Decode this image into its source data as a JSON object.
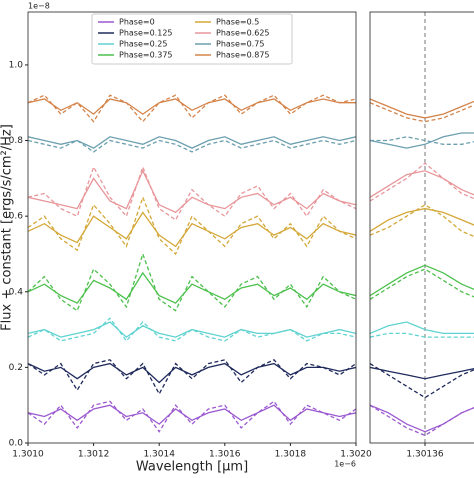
{
  "chart_data": [
    {
      "type": "line",
      "xlabel": "Wavelength [μm]",
      "ylabel": "Flux + constant [ergs/s/cm²/Hz]",
      "y_offset_text": "1e−8",
      "x_offset_text": "1e−6",
      "legend": "upper center",
      "x": [
        1.301,
        1.30105,
        1.3011,
        1.30115,
        1.3012,
        1.30125,
        1.3013,
        1.30135,
        1.3014,
        1.30145,
        1.3015,
        1.30155,
        1.3016,
        1.30165,
        1.3017,
        1.30175,
        1.3018,
        1.30185,
        1.3019,
        1.30195,
        1.302
      ],
      "xlim": [
        1.301,
        1.302
      ],
      "xticks": [
        {
          "value": 1.301,
          "label": "1.3010"
        },
        {
          "value": 1.3012,
          "label": "1.3012"
        },
        {
          "value": 1.3014,
          "label": "1.3014"
        },
        {
          "value": 1.3016,
          "label": "1.3016"
        },
        {
          "value": 1.3018,
          "label": "1.3018"
        },
        {
          "value": 1.302,
          "label": "1.3020"
        }
      ],
      "ylim": [
        0,
        1.14
      ],
      "yticks": [
        {
          "value": 0,
          "label": "0.0"
        },
        {
          "value": 0.2,
          "label": "0.2"
        },
        {
          "value": 0.4,
          "label": "0.4"
        },
        {
          "value": 0.6,
          "label": "0.6"
        },
        {
          "value": 0.8,
          "label": "0.8"
        },
        {
          "value": 1,
          "label": "1.0"
        }
      ],
      "series": [
        {
          "name": "Phase=0",
          "color": "#9b59d0",
          "values": [
            0.08,
            0.07,
            0.09,
            0.06,
            0.09,
            0.1,
            0.07,
            0.08,
            0.05,
            0.09,
            0.06,
            0.08,
            0.09,
            0.06,
            0.08,
            0.1,
            0.06,
            0.09,
            0.08,
            0.07,
            0.08
          ],
          "dashed_values": [
            0.08,
            0.05,
            0.1,
            0.04,
            0.1,
            0.11,
            0.06,
            0.09,
            0.03,
            0.1,
            0.05,
            0.09,
            0.1,
            0.04,
            0.08,
            0.11,
            0.05,
            0.1,
            0.08,
            0.06,
            0.09
          ]
        },
        {
          "name": "Phase=0.125",
          "color": "#1f2a5c",
          "values": [
            0.21,
            0.19,
            0.2,
            0.17,
            0.2,
            0.21,
            0.18,
            0.2,
            0.16,
            0.2,
            0.18,
            0.2,
            0.21,
            0.18,
            0.2,
            0.21,
            0.18,
            0.2,
            0.2,
            0.19,
            0.2
          ],
          "dashed_values": [
            0.21,
            0.18,
            0.21,
            0.14,
            0.21,
            0.22,
            0.17,
            0.21,
            0.13,
            0.21,
            0.17,
            0.21,
            0.22,
            0.16,
            0.2,
            0.22,
            0.17,
            0.21,
            0.2,
            0.18,
            0.21
          ]
        },
        {
          "name": "Phase=0.25",
          "color": "#5fd3d0",
          "values": [
            0.29,
            0.3,
            0.28,
            0.29,
            0.3,
            0.32,
            0.28,
            0.31,
            0.29,
            0.28,
            0.3,
            0.29,
            0.28,
            0.3,
            0.29,
            0.29,
            0.3,
            0.28,
            0.29,
            0.3,
            0.29
          ],
          "dashed_values": [
            0.28,
            0.3,
            0.27,
            0.28,
            0.29,
            0.33,
            0.27,
            0.32,
            0.28,
            0.27,
            0.3,
            0.28,
            0.27,
            0.3,
            0.28,
            0.29,
            0.3,
            0.27,
            0.29,
            0.29,
            0.28
          ]
        },
        {
          "name": "Phase=0.375",
          "color": "#4cc04c",
          "values": [
            0.4,
            0.42,
            0.39,
            0.37,
            0.43,
            0.41,
            0.38,
            0.45,
            0.39,
            0.37,
            0.42,
            0.4,
            0.38,
            0.41,
            0.42,
            0.39,
            0.41,
            0.38,
            0.42,
            0.4,
            0.39
          ],
          "dashed_values": [
            0.4,
            0.44,
            0.38,
            0.35,
            0.46,
            0.42,
            0.36,
            0.5,
            0.38,
            0.35,
            0.44,
            0.4,
            0.36,
            0.42,
            0.44,
            0.38,
            0.42,
            0.36,
            0.44,
            0.4,
            0.38
          ]
        },
        {
          "name": "Phase=0.5",
          "color": "#d4a838",
          "values": [
            0.56,
            0.58,
            0.55,
            0.53,
            0.6,
            0.57,
            0.54,
            0.61,
            0.55,
            0.52,
            0.58,
            0.56,
            0.54,
            0.57,
            0.58,
            0.55,
            0.57,
            0.54,
            0.58,
            0.56,
            0.55
          ],
          "dashed_values": [
            0.57,
            0.6,
            0.54,
            0.51,
            0.63,
            0.58,
            0.52,
            0.65,
            0.54,
            0.5,
            0.6,
            0.56,
            0.52,
            0.58,
            0.6,
            0.54,
            0.58,
            0.52,
            0.6,
            0.56,
            0.54
          ]
        },
        {
          "name": "Phase=0.625",
          "color": "#e8969a",
          "values": [
            0.65,
            0.64,
            0.63,
            0.62,
            0.7,
            0.64,
            0.62,
            0.72,
            0.63,
            0.61,
            0.65,
            0.63,
            0.62,
            0.65,
            0.66,
            0.63,
            0.65,
            0.62,
            0.66,
            0.64,
            0.63
          ],
          "dashed_values": [
            0.65,
            0.66,
            0.62,
            0.6,
            0.73,
            0.65,
            0.6,
            0.73,
            0.62,
            0.59,
            0.67,
            0.63,
            0.6,
            0.66,
            0.68,
            0.62,
            0.66,
            0.6,
            0.67,
            0.64,
            0.62
          ]
        },
        {
          "name": "Phase=0.75",
          "color": "#6b9fae",
          "values": [
            0.81,
            0.8,
            0.79,
            0.8,
            0.78,
            0.81,
            0.8,
            0.79,
            0.81,
            0.8,
            0.78,
            0.8,
            0.81,
            0.79,
            0.8,
            0.81,
            0.79,
            0.8,
            0.81,
            0.8,
            0.81
          ],
          "dashed_values": [
            0.8,
            0.79,
            0.78,
            0.8,
            0.77,
            0.8,
            0.79,
            0.78,
            0.8,
            0.79,
            0.77,
            0.79,
            0.8,
            0.78,
            0.79,
            0.8,
            0.78,
            0.79,
            0.8,
            0.79,
            0.8
          ]
        },
        {
          "name": "Phase=0.875",
          "color": "#d4844a",
          "values": [
            0.9,
            0.91,
            0.88,
            0.9,
            0.87,
            0.91,
            0.9,
            0.87,
            0.9,
            0.91,
            0.88,
            0.9,
            0.91,
            0.88,
            0.9,
            0.91,
            0.88,
            0.9,
            0.91,
            0.9,
            0.9
          ],
          "dashed_values": [
            0.9,
            0.92,
            0.87,
            0.9,
            0.85,
            0.92,
            0.9,
            0.85,
            0.9,
            0.92,
            0.86,
            0.9,
            0.92,
            0.87,
            0.9,
            0.92,
            0.87,
            0.9,
            0.92,
            0.9,
            0.91
          ]
        }
      ]
    },
    {
      "type": "line",
      "vline": 1.30136,
      "x": [
        1.30133,
        1.30134,
        1.30135,
        1.30136,
        1.30137,
        1.30138,
        1.30139
      ],
      "xlim": [
        1.30133,
        1.30139
      ],
      "xticks": [
        1.30136
      ],
      "ylim": [
        0,
        1.14
      ],
      "series": [
        {
          "color": "#9b59d0",
          "values": [
            0.1,
            0.08,
            0.05,
            0.03,
            0.05,
            0.08,
            0.1
          ],
          "dashed_values": [
            0.1,
            0.07,
            0.04,
            0.02,
            0.05,
            0.08,
            0.1
          ]
        },
        {
          "color": "#1f2a5c",
          "values": [
            0.2,
            0.19,
            0.18,
            0.17,
            0.18,
            0.19,
            0.2
          ],
          "dashed_values": [
            0.21,
            0.18,
            0.15,
            0.12,
            0.15,
            0.18,
            0.2
          ]
        },
        {
          "color": "#5fd3d0",
          "values": [
            0.29,
            0.31,
            0.32,
            0.3,
            0.29,
            0.29,
            0.29
          ],
          "dashed_values": [
            0.28,
            0.29,
            0.29,
            0.28,
            0.28,
            0.28,
            0.28
          ]
        },
        {
          "color": "#4cc04c",
          "values": [
            0.39,
            0.42,
            0.45,
            0.47,
            0.45,
            0.42,
            0.4
          ],
          "dashed_values": [
            0.38,
            0.41,
            0.44,
            0.46,
            0.43,
            0.4,
            0.38
          ]
        },
        {
          "color": "#d4a838",
          "values": [
            0.56,
            0.59,
            0.61,
            0.62,
            0.61,
            0.59,
            0.57
          ],
          "dashed_values": [
            0.55,
            0.57,
            0.6,
            0.63,
            0.6,
            0.56,
            0.54
          ]
        },
        {
          "color": "#e8969a",
          "values": [
            0.65,
            0.68,
            0.71,
            0.72,
            0.7,
            0.67,
            0.65
          ],
          "dashed_values": [
            0.64,
            0.67,
            0.7,
            0.74,
            0.7,
            0.66,
            0.64
          ]
        },
        {
          "color": "#6b9fae",
          "values": [
            0.8,
            0.79,
            0.78,
            0.79,
            0.81,
            0.82,
            0.82
          ],
          "dashed_values": [
            0.8,
            0.8,
            0.81,
            0.8,
            0.79,
            0.79,
            0.8
          ]
        },
        {
          "color": "#d4844a",
          "values": [
            0.91,
            0.89,
            0.87,
            0.86,
            0.87,
            0.89,
            0.91
          ],
          "dashed_values": [
            0.9,
            0.88,
            0.86,
            0.85,
            0.86,
            0.88,
            0.9
          ]
        }
      ]
    }
  ]
}
